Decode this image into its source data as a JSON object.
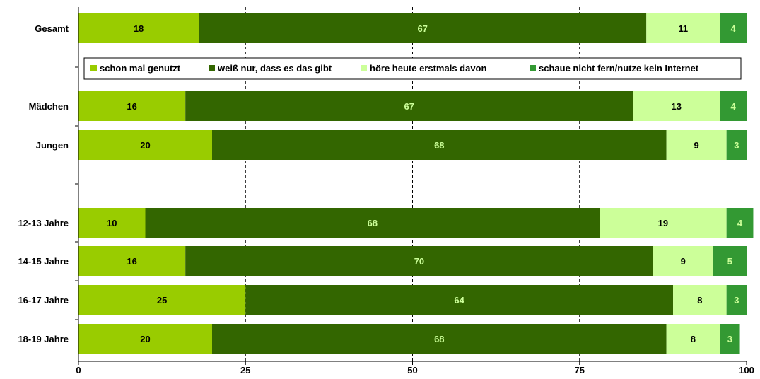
{
  "chart_data": {
    "type": "bar",
    "orientation": "horizontal",
    "stacked": true,
    "title": "",
    "xlabel": "",
    "ylabel": "",
    "xlim": [
      0,
      100
    ],
    "xticks": [
      0,
      25,
      50,
      75,
      100
    ],
    "grid": "vertical dashed",
    "legend_position": "top (inside plot, below first bar)",
    "categories": [
      "Gesamt",
      "Mädchen",
      "Jungen",
      "12-13 Jahre",
      "14-15 Jahre",
      "16-17 Jahre",
      "18-19 Jahre"
    ],
    "series": [
      {
        "name": "schon mal genutzt",
        "color": "#99CC00",
        "label_color": "#000000",
        "values": [
          18,
          16,
          20,
          10,
          16,
          25,
          20
        ]
      },
      {
        "name": "weiß nur, dass es das gibt",
        "color": "#336600",
        "label_color": "#CCFF99",
        "values": [
          67,
          67,
          68,
          68,
          70,
          64,
          68
        ]
      },
      {
        "name": "höre heute erstmals davon",
        "color": "#CCFF99",
        "label_color": "#000000",
        "values": [
          11,
          13,
          9,
          19,
          9,
          8,
          8
        ]
      },
      {
        "name": "schaue nicht fern/nutze kein Internet",
        "color": "#339933",
        "label_color": "#CCFF99",
        "values": [
          4,
          4,
          3,
          4,
          5,
          3,
          3
        ]
      }
    ]
  }
}
